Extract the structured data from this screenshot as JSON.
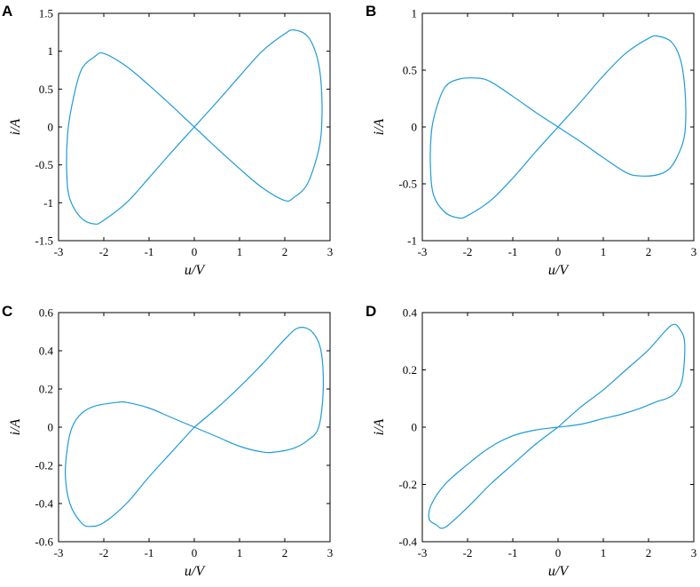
{
  "chart_data": [
    {
      "type": "line",
      "panel": "A",
      "xlabel": "u/V",
      "ylabel": "i/A",
      "xlim": [
        -3,
        3
      ],
      "ylim": [
        -1.5,
        1.5
      ],
      "xticks": [
        -3,
        -2,
        -1,
        0,
        1,
        2,
        3
      ],
      "yticks": [
        -1.5,
        -1,
        -0.5,
        0,
        0.5,
        1,
        1.5
      ],
      "xtick_labels": [
        "-3",
        "-2",
        "-1",
        "0",
        "1",
        "2",
        "3"
      ],
      "ytick_labels": [
        "-1.5",
        "-1",
        "-0.5",
        "0",
        "0.5",
        "1",
        "1.5"
      ],
      "color": "#1f9bd7",
      "series": [
        {
          "x": [
            0,
            0.5,
            1.0,
            1.5,
            2.0,
            2.2,
            2.5,
            2.7,
            2.8,
            2.82,
            2.75,
            2.5,
            2.2,
            2.0,
            1.5,
            1.0,
            0.5,
            0,
            -0.5,
            -1.0,
            -1.5,
            -2.0,
            -2.2,
            -2.5,
            -2.7,
            -2.8,
            -2.82,
            -2.75,
            -2.5,
            -2.2,
            -2.0,
            -1.5,
            -1.0,
            -0.5,
            0
          ],
          "y": [
            0,
            0.33,
            0.67,
            1.0,
            1.23,
            1.28,
            1.2,
            0.95,
            0.6,
            0.1,
            -0.3,
            -0.75,
            -0.93,
            -0.97,
            -0.8,
            -0.55,
            -0.28,
            0,
            0.28,
            0.55,
            0.8,
            0.97,
            0.93,
            0.75,
            0.3,
            -0.1,
            -0.6,
            -0.95,
            -1.2,
            -1.28,
            -1.23,
            -1.0,
            -0.67,
            -0.33,
            0
          ]
        }
      ]
    },
    {
      "type": "line",
      "panel": "B",
      "xlabel": "u/V",
      "ylabel": "i/A",
      "xlim": [
        -3,
        3
      ],
      "ylim": [
        -1,
        1
      ],
      "xticks": [
        -3,
        -2,
        -1,
        0,
        1,
        2,
        3
      ],
      "yticks": [
        -1,
        -0.5,
        0,
        0.5,
        1
      ],
      "xtick_labels": [
        "-3",
        "-2",
        "-1",
        "0",
        "1",
        "2",
        "3"
      ],
      "ytick_labels": [
        "-1",
        "-0.5",
        "0",
        "0.5",
        "1"
      ],
      "color": "#1f9bd7",
      "series": [
        {
          "x": [
            0,
            0.5,
            1.0,
            1.5,
            2.0,
            2.2,
            2.5,
            2.7,
            2.8,
            2.82,
            2.75,
            2.5,
            2.2,
            1.8,
            1.5,
            1.0,
            0.5,
            0,
            -0.5,
            -1.0,
            -1.5,
            -1.8,
            -2.2,
            -2.5,
            -2.7,
            -2.8,
            -2.82,
            -2.75,
            -2.5,
            -2.2,
            -2.0,
            -1.5,
            -1.0,
            -0.5,
            0
          ],
          "y": [
            0,
            0.22,
            0.45,
            0.65,
            0.78,
            0.8,
            0.75,
            0.6,
            0.35,
            0.05,
            -0.15,
            -0.35,
            -0.42,
            -0.43,
            -0.4,
            -0.27,
            -0.13,
            0,
            0.13,
            0.27,
            0.4,
            0.43,
            0.42,
            0.35,
            0.15,
            -0.05,
            -0.35,
            -0.6,
            -0.75,
            -0.8,
            -0.78,
            -0.65,
            -0.45,
            -0.22,
            0
          ]
        }
      ]
    },
    {
      "type": "line",
      "panel": "C",
      "xlabel": "u/V",
      "ylabel": "i/A",
      "xlim": [
        -3,
        3
      ],
      "ylim": [
        -0.6,
        0.6
      ],
      "xticks": [
        -3,
        -2,
        -1,
        0,
        1,
        2,
        3
      ],
      "yticks": [
        -0.6,
        -0.4,
        -0.2,
        0,
        0.2,
        0.4,
        0.6
      ],
      "xtick_labels": [
        "-3",
        "-2",
        "-1",
        "0",
        "1",
        "2",
        "3"
      ],
      "ytick_labels": [
        "-0.6",
        "-0.4",
        "-0.2",
        "0",
        "0.2",
        "0.4",
        "0.6"
      ],
      "color": "#1f9bd7",
      "series": [
        {
          "x": [
            0,
            0.5,
            1.0,
            1.5,
            2.0,
            2.3,
            2.6,
            2.8,
            2.85,
            2.75,
            2.5,
            2.2,
            1.8,
            1.5,
            1.0,
            0.5,
            0,
            -0.5,
            -1.0,
            -1.5,
            -1.7,
            -2.2,
            -2.5,
            -2.7,
            -2.8,
            -2.85,
            -2.75,
            -2.5,
            -2.3,
            -2.0,
            -1.5,
            -1.0,
            -0.5,
            0
          ],
          "y": [
            0,
            0.1,
            0.21,
            0.33,
            0.46,
            0.52,
            0.5,
            0.4,
            0.2,
            0.0,
            -0.07,
            -0.11,
            -0.13,
            -0.13,
            -0.1,
            -0.05,
            0,
            0.05,
            0.1,
            0.13,
            0.13,
            0.11,
            0.07,
            0.0,
            -0.1,
            -0.25,
            -0.4,
            -0.5,
            -0.52,
            -0.5,
            -0.4,
            -0.26,
            -0.13,
            0
          ]
        }
      ]
    },
    {
      "type": "line",
      "panel": "D",
      "xlabel": "u/V",
      "ylabel": "i/A",
      "xlim": [
        -3,
        3
      ],
      "ylim": [
        -0.4,
        0.4
      ],
      "xticks": [
        -3,
        -2,
        -1,
        0,
        1,
        2,
        3
      ],
      "yticks": [
        -0.4,
        -0.2,
        0,
        0.2,
        0.4
      ],
      "xtick_labels": [
        "-3",
        "-2",
        "-1",
        "0",
        "1",
        "2",
        "3"
      ],
      "ytick_labels": [
        "-0.4",
        "-0.2",
        "0",
        "0.2",
        "0.4"
      ],
      "color": "#1f9bd7",
      "series": [
        {
          "x": [
            0,
            0.5,
            1.0,
            1.5,
            2.0,
            2.5,
            2.7,
            2.8,
            2.75,
            2.6,
            2.4,
            2.2,
            1.8,
            1.4,
            1.0,
            0.5,
            0,
            -0.5,
            -1.0,
            -1.5,
            -2.0,
            -2.5,
            -2.8,
            -2.85,
            -2.7,
            -2.5,
            -2.0,
            -1.5,
            -1.0,
            -0.5,
            0
          ],
          "y": [
            0,
            0.07,
            0.13,
            0.2,
            0.27,
            0.355,
            0.34,
            0.29,
            0.17,
            0.12,
            0.1,
            0.09,
            0.065,
            0.045,
            0.03,
            0.01,
            0,
            -0.01,
            -0.03,
            -0.07,
            -0.13,
            -0.2,
            -0.27,
            -0.32,
            -0.34,
            -0.35,
            -0.28,
            -0.2,
            -0.13,
            -0.06,
            0
          ]
        }
      ]
    }
  ]
}
